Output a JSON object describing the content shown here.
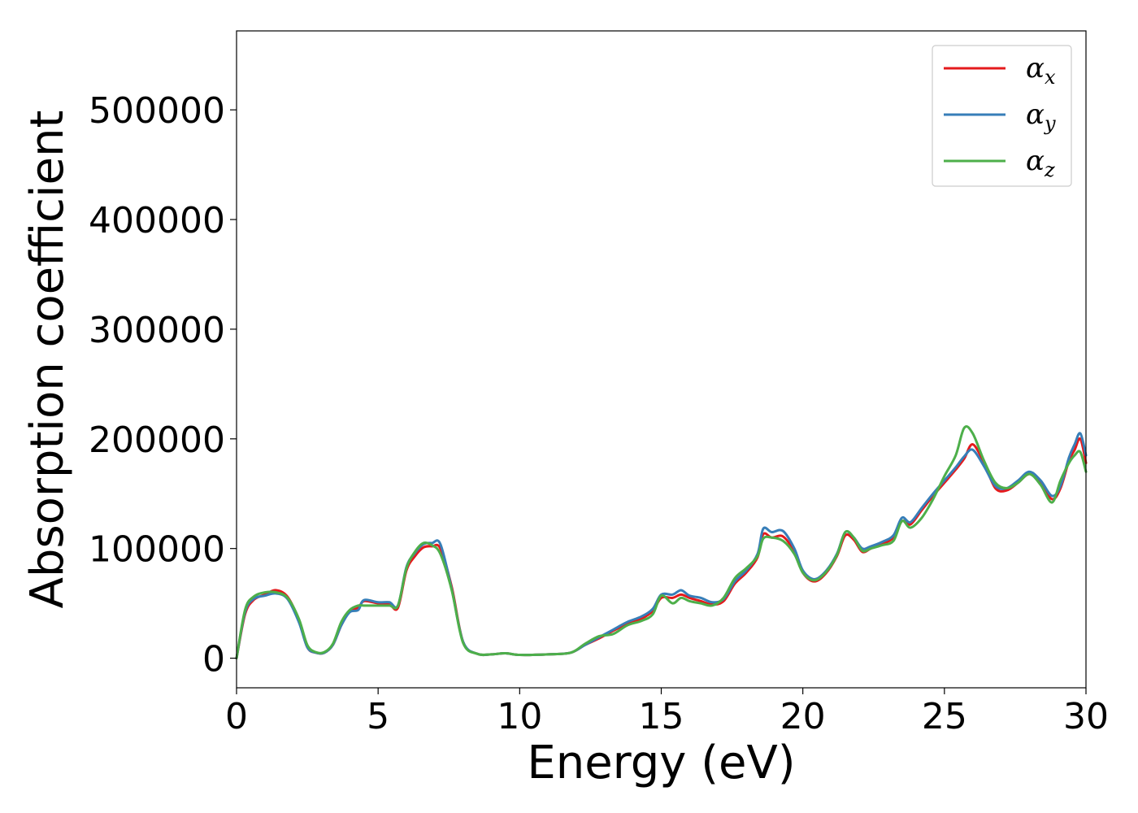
{
  "chart_data": {
    "type": "line",
    "title": "",
    "xlabel": "Energy (eV)",
    "ylabel": "Absorption coefficient",
    "xlim": [
      0,
      30
    ],
    "ylim": [
      -27000,
      572000
    ],
    "xticks": [
      0,
      5,
      10,
      15,
      20,
      25,
      30
    ],
    "xtick_labels": [
      "0",
      "5",
      "10",
      "15",
      "20",
      "25",
      "30"
    ],
    "yticks": [
      0,
      100000,
      200000,
      300000,
      400000,
      500000
    ],
    "ytick_labels": [
      "0",
      "100000",
      "200000",
      "300000",
      "400000",
      "500000"
    ],
    "grid": false,
    "legend_position": "top-right",
    "x": [
      0,
      0.3,
      0.6,
      1.0,
      1.4,
      1.8,
      2.2,
      2.5,
      2.8,
      3.1,
      3.4,
      3.7,
      4.0,
      4.3,
      4.5,
      5.0,
      5.4,
      5.7,
      6.0,
      6.3,
      6.6,
      6.9,
      7.2,
      7.6,
      8.0,
      8.5,
      9.0,
      9.5,
      10.0,
      11.0,
      11.8,
      12.3,
      12.8,
      13.3,
      13.8,
      14.3,
      14.7,
      15.0,
      15.4,
      15.7,
      16.0,
      16.4,
      16.8,
      17.2,
      17.6,
      18.0,
      18.4,
      18.6,
      18.9,
      19.3,
      19.7,
      20.0,
      20.4,
      20.8,
      21.2,
      21.5,
      21.8,
      22.1,
      22.4,
      22.8,
      23.2,
      23.5,
      23.8,
      24.2,
      24.6,
      25.0,
      25.4,
      25.7,
      26.0,
      26.4,
      26.8,
      27.2,
      27.6,
      28.0,
      28.4,
      28.8,
      29.1,
      29.4,
      29.6,
      29.8,
      30.0
    ],
    "series": [
      {
        "name": "α",
        "subscript": "x",
        "color": "#e41a1c",
        "values": [
          0,
          40000,
          53000,
          58000,
          62000,
          56000,
          35000,
          10000,
          5000,
          5000,
          12000,
          30000,
          43000,
          46000,
          52000,
          50000,
          49000,
          46000,
          80000,
          93000,
          101000,
          102000,
          100000,
          65000,
          15000,
          4000,
          3500,
          4500,
          3000,
          3500,
          5000,
          12000,
          18000,
          25000,
          31000,
          36000,
          43000,
          55000,
          55000,
          58000,
          55000,
          52000,
          49000,
          52000,
          68000,
          78000,
          92000,
          113000,
          110000,
          111000,
          97000,
          78000,
          70000,
          77000,
          93000,
          112000,
          108000,
          97000,
          100000,
          104000,
          110000,
          125000,
          122000,
          135000,
          148000,
          160000,
          172000,
          182000,
          195000,
          178000,
          155000,
          153000,
          160000,
          168000,
          160000,
          145000,
          155000,
          180000,
          190000,
          200000,
          178000
        ]
      },
      {
        "name": "α",
        "subscript": "y",
        "color": "#377eb8",
        "values": [
          0,
          42000,
          54000,
          57000,
          59000,
          54000,
          33000,
          10000,
          5000,
          5000,
          12000,
          30000,
          42000,
          44000,
          53000,
          51000,
          51000,
          48000,
          83000,
          96000,
          104000,
          105000,
          104000,
          63000,
          15000,
          4000,
          3500,
          4500,
          3000,
          3500,
          5000,
          12000,
          19000,
          26000,
          33000,
          38000,
          45000,
          58000,
          58000,
          62000,
          57000,
          55000,
          51000,
          54000,
          70000,
          80000,
          95000,
          118000,
          115000,
          116000,
          100000,
          80000,
          72000,
          79000,
          95000,
          115000,
          110000,
          100000,
          102000,
          106000,
          112000,
          128000,
          124000,
          137000,
          150000,
          162000,
          174000,
          184000,
          190000,
          175000,
          157000,
          155000,
          162000,
          170000,
          162000,
          148000,
          157000,
          183000,
          195000,
          205000,
          185000
        ]
      },
      {
        "name": "α",
        "subscript": "z",
        "color": "#4daf4a",
        "values": [
          0,
          44000,
          56000,
          60000,
          60000,
          55000,
          36000,
          12000,
          5500,
          5500,
          13000,
          33000,
          44000,
          48000,
          48000,
          48000,
          48000,
          48000,
          82000,
          97000,
          105000,
          103000,
          95000,
          62000,
          14000,
          4000,
          3500,
          4500,
          3000,
          3500,
          5000,
          13000,
          20000,
          22000,
          30000,
          34000,
          40000,
          57000,
          50000,
          55000,
          52000,
          50000,
          48000,
          55000,
          73000,
          82000,
          93000,
          109000,
          110000,
          107000,
          95000,
          78000,
          71000,
          78000,
          94000,
          115000,
          110000,
          98000,
          100000,
          103000,
          107000,
          125000,
          119000,
          128000,
          145000,
          166000,
          185000,
          210000,
          205000,
          180000,
          160000,
          155000,
          160000,
          168000,
          158000,
          142000,
          162000,
          178000,
          185000,
          188000,
          170000
        ]
      }
    ]
  }
}
